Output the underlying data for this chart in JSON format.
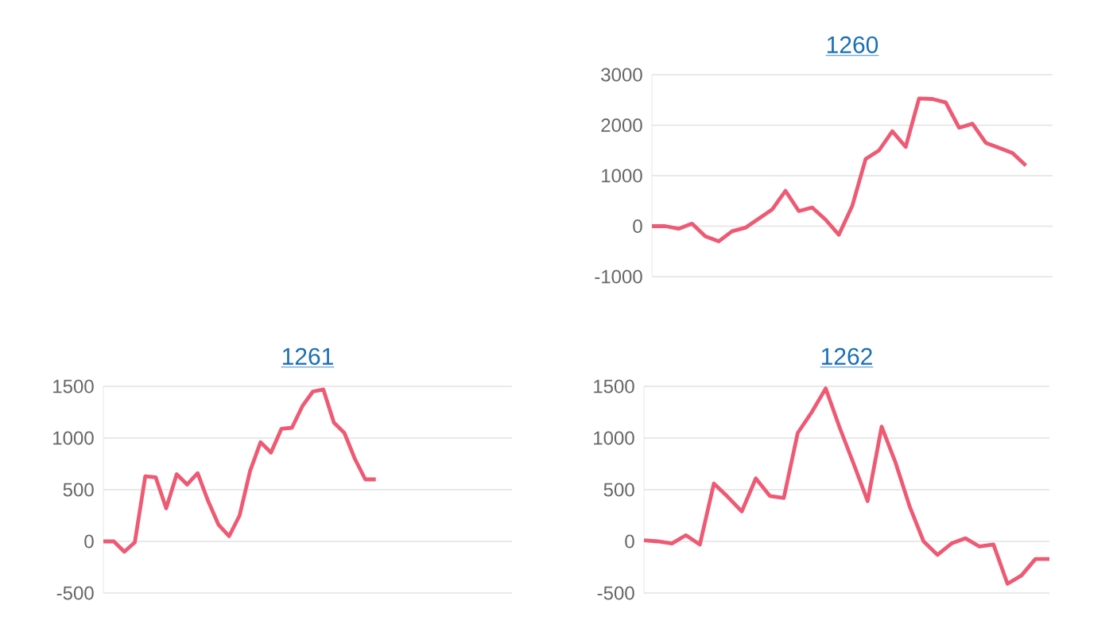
{
  "chart_data": [
    {
      "type": "line",
      "title": "1260",
      "categories": [
        null,
        null,
        null,
        null,
        null,
        null,
        null,
        null,
        null,
        null,
        null,
        null,
        null,
        null,
        null,
        null,
        null,
        null,
        null,
        null,
        null,
        null,
        null,
        null,
        null,
        null,
        null,
        null,
        null,
        null,
        null
      ],
      "values": [
        0,
        0,
        -50,
        50,
        -200,
        -300,
        -100,
        -30,
        150,
        330,
        700,
        300,
        370,
        130,
        -170,
        400,
        1330,
        1500,
        1880,
        1570,
        2530,
        2520,
        2450,
        1950,
        2030,
        1650,
        1550,
        1450,
        1200,
        null,
        null
      ],
      "color": "#ee5a73",
      "ylim": [
        -1000,
        3000
      ],
      "yticks": [
        -1000,
        0,
        1000,
        2000,
        3000
      ],
      "grid": "y"
    },
    {
      "type": "line",
      "title": "1261",
      "categories": [
        null,
        null,
        null,
        null,
        null,
        null,
        null,
        null,
        null,
        null,
        null,
        null,
        null,
        null,
        null,
        null,
        null,
        null,
        null,
        null,
        null,
        null,
        null,
        null,
        null,
        null,
        null,
        null,
        null,
        null,
        null,
        null,
        null,
        null,
        null,
        null,
        null,
        null,
        null,
        null
      ],
      "values": [
        0,
        0,
        -100,
        -10,
        630,
        620,
        320,
        650,
        550,
        660,
        390,
        160,
        50,
        250,
        680,
        960,
        860,
        1090,
        1100,
        1310,
        1450,
        1470,
        1150,
        1050,
        800,
        600,
        600,
        null,
        null,
        null,
        null,
        null,
        null,
        null,
        null,
        null,
        null,
        null,
        null,
        null
      ],
      "color": "#ee5a73",
      "ylim": [
        -500,
        1500
      ],
      "yticks": [
        -500,
        0,
        500,
        1000,
        1500
      ],
      "grid": "y"
    },
    {
      "type": "line",
      "title": "1262",
      "categories": [
        null,
        null,
        null,
        null,
        null,
        null,
        null,
        null,
        null,
        null,
        null,
        null,
        null,
        null,
        null,
        null,
        null,
        null,
        null,
        null,
        null,
        null,
        null,
        null,
        null,
        null,
        null,
        null,
        null,
        null
      ],
      "values": [
        10,
        0,
        -20,
        60,
        -30,
        560,
        430,
        290,
        610,
        440,
        420,
        1050,
        1250,
        1480,
        1100,
        750,
        390,
        1110,
        760,
        340,
        0,
        -130,
        -20,
        30,
        -50,
        -30,
        -410,
        -330,
        -170,
        -170
      ],
      "color": "#ee5a73",
      "ylim": [
        -500,
        1500
      ],
      "yticks": [
        -500,
        0,
        500,
        1000,
        1500
      ],
      "grid": "y"
    }
  ]
}
